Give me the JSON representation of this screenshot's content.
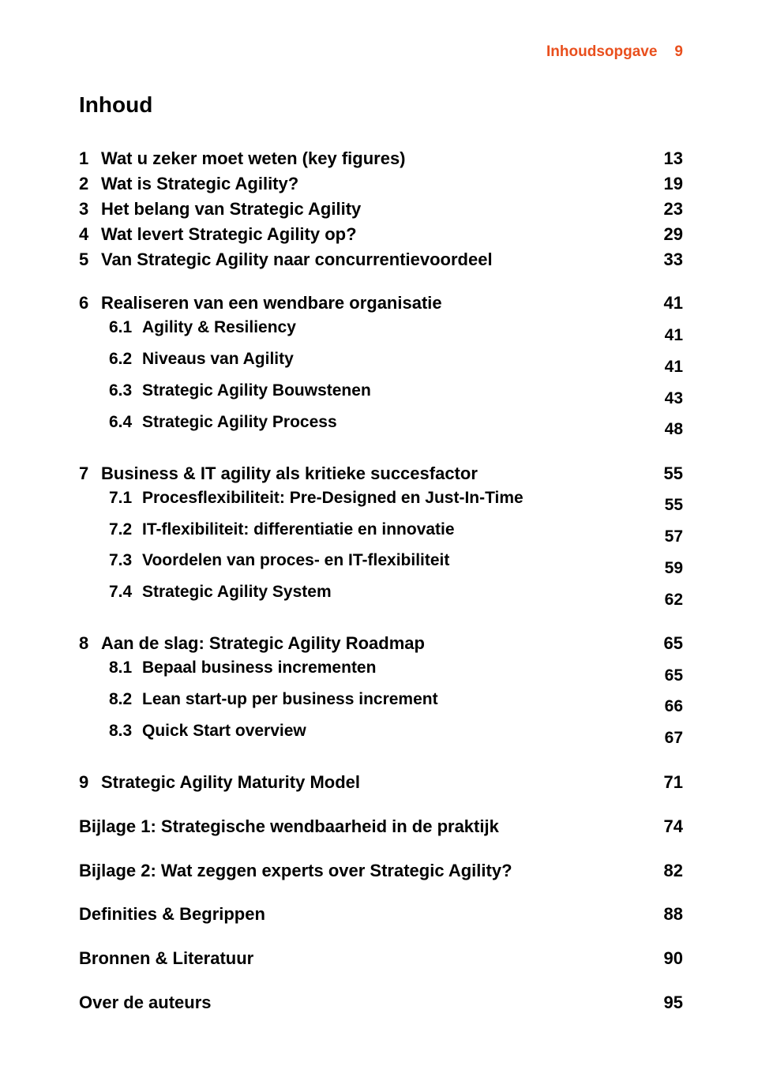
{
  "colors": {
    "accent": "#e94f1d",
    "text": "#000000",
    "background": "#ffffff"
  },
  "typography": {
    "font_family": "Helvetica Neue, Helvetica, Arial, sans-serif",
    "title_fontsize": 28,
    "heading_fontsize": 22,
    "sub_fontsize": 21,
    "header_fontsize": 19
  },
  "header": {
    "label": "Inhoudsopgave",
    "pagenum": "9"
  },
  "title": "Inhoud",
  "toc": {
    "ch1": {
      "num": "1",
      "title": "Wat u zeker moet weten (key figures)",
      "page": "13"
    },
    "ch2": {
      "num": "2",
      "title": "Wat is Strategic Agility?",
      "page": "19"
    },
    "ch3": {
      "num": "3",
      "title": "Het belang van Strategic Agility",
      "page": "23"
    },
    "ch4": {
      "num": "4",
      "title": "Wat levert Strategic Agility op?",
      "page": "29"
    },
    "ch5": {
      "num": "5",
      "title": "Van Strategic Agility naar concurrentievoordeel",
      "page": "33"
    },
    "ch6": {
      "num": "6",
      "title": "Realiseren van een wendbare organisatie",
      "page": "41"
    },
    "ch6_1": {
      "num": "6.1",
      "title": "Agility & Resiliency",
      "page": "41"
    },
    "ch6_2": {
      "num": "6.2",
      "title": "Niveaus van Agility",
      "page": "41"
    },
    "ch6_3": {
      "num": "6.3",
      "title": "Strategic Agility Bouwstenen",
      "page": "43"
    },
    "ch6_4": {
      "num": "6.4",
      "title": "Strategic Agility Process",
      "page": "48"
    },
    "ch7": {
      "num": "7",
      "title": "Business & IT agility als kritieke succesfactor",
      "page": "55"
    },
    "ch7_1": {
      "num": "7.1",
      "title": "Procesflexibiliteit: Pre-Designed en Just-In-Time",
      "page": "55"
    },
    "ch7_2": {
      "num": "7.2",
      "title": "IT-flexibiliteit: differentiatie en innovatie",
      "page": "57"
    },
    "ch7_3": {
      "num": "7.3",
      "title": "Voordelen van proces- en IT-flexibiliteit",
      "page": "59"
    },
    "ch7_4": {
      "num": "7.4",
      "title": "Strategic Agility System",
      "page": "62"
    },
    "ch8": {
      "num": "8",
      "title": "Aan de slag: Strategic Agility Roadmap",
      "page": "65"
    },
    "ch8_1": {
      "num": "8.1",
      "title": "Bepaal business incrementen",
      "page": "65"
    },
    "ch8_2": {
      "num": "8.2",
      "title": "Lean start-up per business increment",
      "page": "66"
    },
    "ch8_3": {
      "num": "8.3",
      "title": "Quick Start overview",
      "page": "67"
    },
    "ch9": {
      "num": "9",
      "title": "Strategic Agility Maturity Model",
      "page": "71"
    },
    "app1": {
      "title": "Bijlage 1: Strategische wendbaarheid in de praktijk",
      "page": "74"
    },
    "app2": {
      "title": "Bijlage 2: Wat zeggen experts over Strategic Agility?",
      "page": "82"
    },
    "defs": {
      "title": "Definities & Begrippen",
      "page": "88"
    },
    "sources": {
      "title": "Bronnen & Literatuur",
      "page": "90"
    },
    "authors": {
      "title": "Over de auteurs",
      "page": "95"
    }
  }
}
